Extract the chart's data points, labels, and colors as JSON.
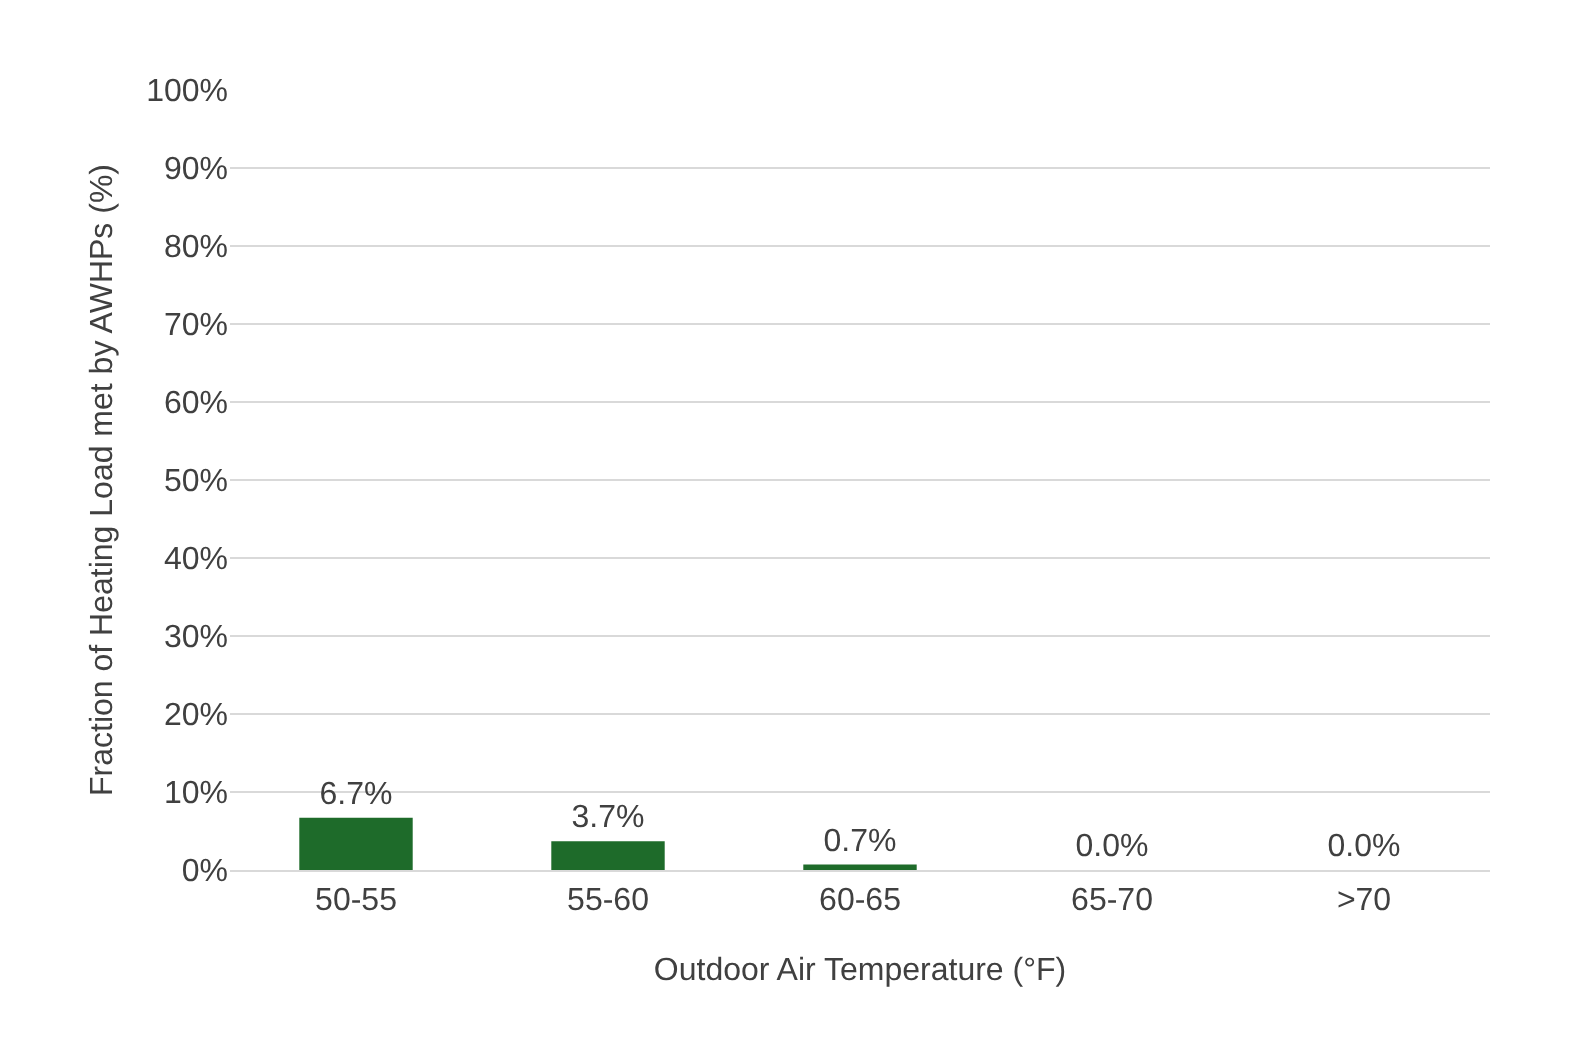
{
  "chart_data": {
    "type": "bar",
    "xlabel": "Outdoor Air Temperature (°F)",
    "ylabel": "Fraction of Heating Load met by AWHPs (%)",
    "categories": [
      "50-55",
      "55-60",
      "60-65",
      "65-70",
      ">70"
    ],
    "values": [
      6.7,
      3.7,
      0.7,
      0.0,
      0.0
    ],
    "value_labels": [
      "6.7%",
      "3.7%",
      "0.7%",
      "0.0%",
      "0.0%"
    ],
    "color": "#1e6b2a",
    "ylim": [
      0,
      100
    ],
    "yticks": [
      {
        "value": 0,
        "label": "0%"
      },
      {
        "value": 10,
        "label": "10%"
      },
      {
        "value": 20,
        "label": "20%"
      },
      {
        "value": 30,
        "label": "30%"
      },
      {
        "value": 40,
        "label": "40%"
      },
      {
        "value": 50,
        "label": "50%"
      },
      {
        "value": 60,
        "label": "60%"
      },
      {
        "value": 70,
        "label": "70%"
      },
      {
        "value": 80,
        "label": "80%"
      },
      {
        "value": 90,
        "label": "90%"
      },
      {
        "value": 100,
        "label": "100%"
      }
    ],
    "grid": "y"
  }
}
